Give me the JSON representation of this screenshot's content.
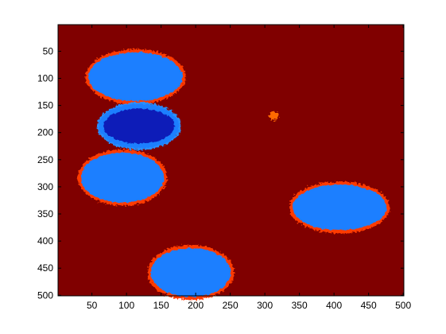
{
  "chart_data": {
    "type": "heatmap",
    "title": "",
    "xlabel": "",
    "ylabel": "",
    "xlim": [
      1,
      501
    ],
    "ylim": [
      1,
      501
    ],
    "y_reversed": true,
    "grid": false,
    "legend": "none",
    "x_ticks": [
      "50",
      "100",
      "150",
      "200",
      "250",
      "300",
      "350",
      "400",
      "450",
      "500"
    ],
    "y_ticks": [
      "50",
      "100",
      "150",
      "200",
      "250",
      "300",
      "350",
      "400",
      "450",
      "500"
    ],
    "background_value_color": "#800000",
    "regions": [
      {
        "label": "blob-top",
        "cx": 113,
        "cy": 97,
        "rx": 68,
        "ry": 45,
        "fill": "#1e7fff",
        "halo": "#ff3a00"
      },
      {
        "label": "blob-middle",
        "cx": 118,
        "cy": 188,
        "rx": 56,
        "ry": 38,
        "fill": "#0a1fb8",
        "halo": "#2a8fff",
        "rim": "#ff4a00"
      },
      {
        "label": "blob-lower-left",
        "cx": 94,
        "cy": 283,
        "rx": 60,
        "ry": 46,
        "fill": "#1e7fff",
        "halo": "#ff3a00"
      },
      {
        "label": "blob-right",
        "cx": 408,
        "cy": 338,
        "rx": 68,
        "ry": 42,
        "fill": "#1e7fff",
        "halo": "#ff3a00"
      },
      {
        "label": "blob-bottom",
        "cx": 193,
        "cy": 458,
        "rx": 58,
        "ry": 45,
        "fill": "#1e7fff",
        "halo": "#ff3a00"
      },
      {
        "label": "speck",
        "cx": 313,
        "cy": 169,
        "rx": 2,
        "ry": 2,
        "fill": "#ff6a00",
        "halo": "#ff6a00"
      }
    ]
  }
}
